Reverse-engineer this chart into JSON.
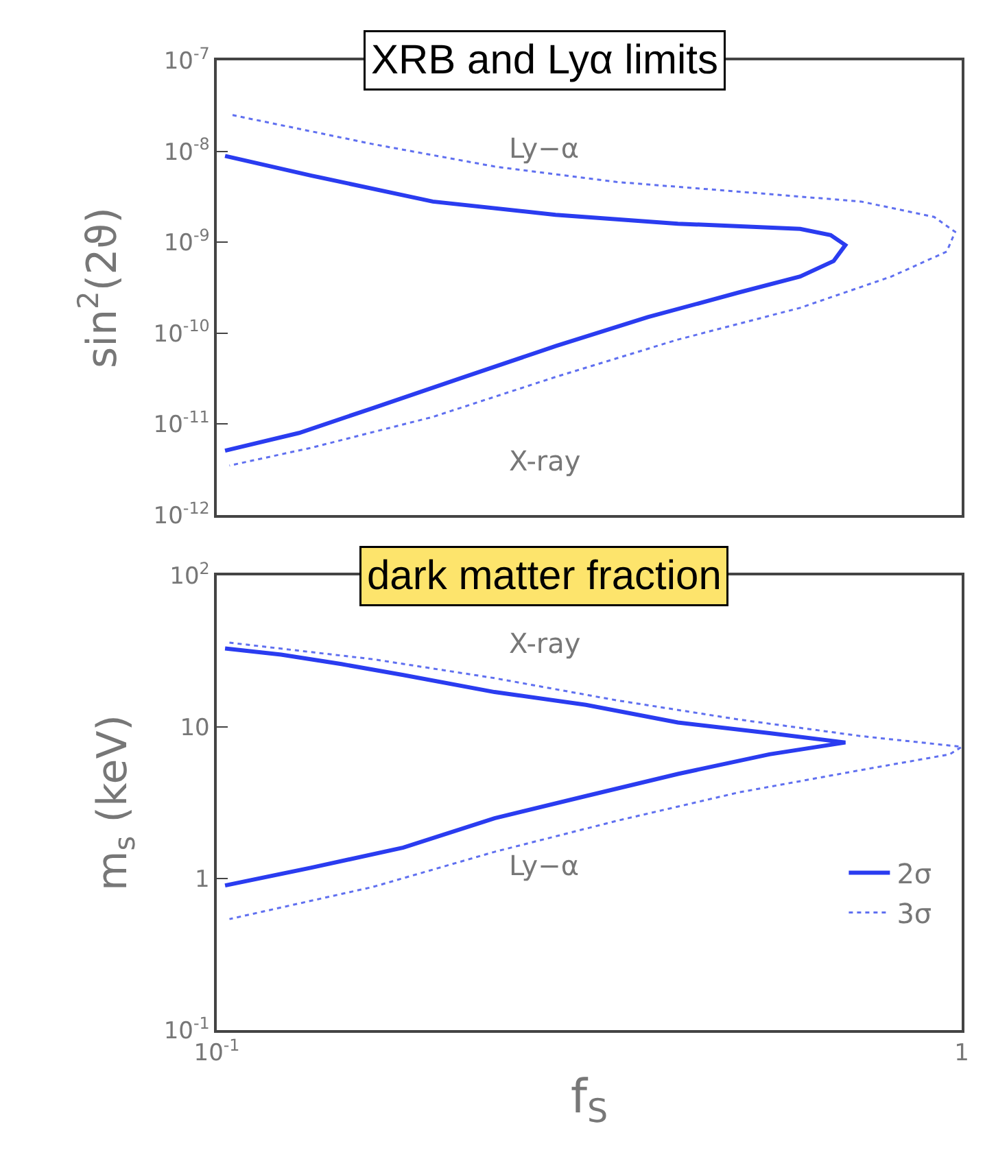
{
  "chart_data": [
    {
      "type": "line",
      "title": "XRB and Lyα limits",
      "ylabel": "sin$^{2}$(2ϑ)",
      "log": "xy",
      "legend": false,
      "tick_labels": "y",
      "xlim": [
        0.1,
        1
      ],
      "ylim": [
        1e-12,
        1e-07
      ],
      "yticks": [
        {
          "value": 1e-12,
          "label": "10$^{-12}$"
        },
        {
          "value": 1e-11,
          "label": "10$^{-11}$"
        },
        {
          "value": 1e-10,
          "label": "10$^{-10}$"
        },
        {
          "value": 1e-09,
          "label": "10$^{-9}$"
        },
        {
          "value": 1e-08,
          "label": "10$^{-8}$"
        },
        {
          "value": 1e-07,
          "label": "10$^{-7}$"
        }
      ],
      "series": [
        {
          "color": "#2a3cf0",
          "line_style": "solid",
          "x": [
            0.1026,
            0.134,
            0.195,
            0.285,
            0.416,
            0.607,
            0.667,
            0.698,
            0.673,
            0.607,
            0.502,
            0.379,
            0.285,
            0.215,
            0.162,
            0.129,
            0.1026
          ],
          "values": [
            8.9e-09,
            5.4e-09,
            2.8e-09,
            2e-09,
            1.6e-09,
            1.4e-09,
            1.2e-09,
            9.3e-10,
            6.2e-10,
            4.2e-10,
            2.8e-10,
            1.5e-10,
            7.2e-11,
            3.3e-11,
            1.5e-11,
            8e-12,
            5.1e-12
          ]
        },
        {
          "color": "#6070f0",
          "line_style": "dotted",
          "x": [
            0.105,
            0.162,
            0.236,
            0.344,
            0.502,
            0.733,
            0.918,
            0.98,
            0.955,
            0.805,
            0.607,
            0.416,
            0.285,
            0.195,
            0.134,
            0.104
          ],
          "values": [
            2.5e-08,
            1.2e-08,
            6.8e-09,
            4.6e-09,
            3.6e-09,
            2.8e-09,
            1.9e-09,
            1.3e-09,
            7.9e-10,
            4.2e-10,
            1.9e-10,
            8.5e-11,
            3.3e-11,
            1.2e-11,
            5.5e-12,
            3.5e-12
          ]
        }
      ],
      "annotations": [
        "Ly−α",
        "X-ray"
      ]
    },
    {
      "type": "line",
      "title": "dark matter fraction",
      "xlabel": "f$_{S}$",
      "ylabel": "m$_{s}$ (keV)",
      "log": "xy",
      "legend": "bottom right",
      "xlim": [
        0.1,
        1
      ],
      "ylim": [
        0.1,
        100
      ],
      "xticks": [
        {
          "value": 0.1,
          "label": "10$^{-1}$"
        },
        1
      ],
      "yticks": [
        {
          "value": 0.1,
          "label": "10$^{-1}$"
        },
        1,
        10,
        {
          "value": 100,
          "label": "10$^{2}$"
        }
      ],
      "series": [
        {
          "name": "2σ",
          "color": "#2a3cf0",
          "line_style": "solid",
          "x": [
            0.1026,
            0.122,
            0.147,
            0.178,
            0.236,
            0.313,
            0.416,
            0.552,
            0.698,
            0.552,
            0.416,
            0.313,
            0.236,
            0.178,
            0.134,
            0.1026
          ],
          "values": [
            33,
            30,
            26,
            22,
            17,
            14,
            10.7,
            9.1,
            7.9,
            6.6,
            4.9,
            3.5,
            2.5,
            1.6,
            1.18,
            0.9
          ]
        },
        {
          "name": "3σ",
          "color": "#6070f0",
          "line_style": "dotted",
          "x": [
            0.104,
            0.162,
            0.236,
            0.344,
            0.502,
            0.733,
            1.0,
            0.964,
            0.733,
            0.502,
            0.344,
            0.236,
            0.162,
            0.104
          ],
          "values": [
            36,
            28,
            21,
            15,
            11.2,
            8.7,
            7.4,
            6.6,
            5.2,
            3.7,
            2.4,
            1.5,
            0.88,
            0.54
          ]
        }
      ],
      "annotations": [
        "X-ray",
        "Ly−α"
      ]
    }
  ]
}
